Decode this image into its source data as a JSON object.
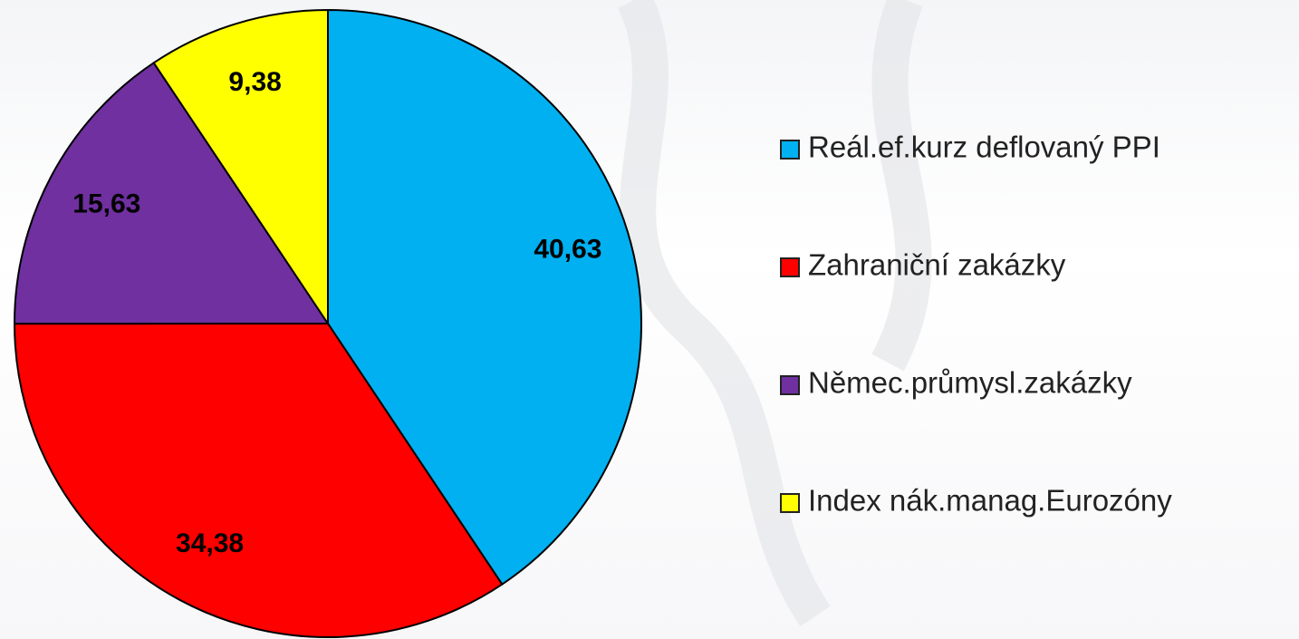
{
  "chart_data": {
    "type": "pie",
    "categories": [
      "Reál.ef.kurz deflovaný PPI",
      "Zahraniční zakázky",
      "Němec.průmysl.zakázky",
      "Index nák.manag.Eurozóny"
    ],
    "values": [
      40.63,
      34.38,
      15.63,
      9.38
    ],
    "value_labels": [
      "40,63",
      "34,38",
      "15,63",
      "9,38"
    ],
    "colors": [
      "#00b0f0",
      "#ff0000",
      "#7030a0",
      "#ffff00"
    ],
    "legend": "right"
  }
}
